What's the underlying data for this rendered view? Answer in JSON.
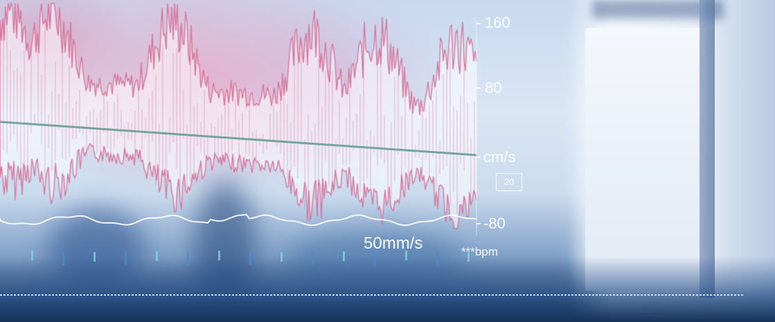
{
  "scale": {
    "top": "160",
    "upper": "80",
    "unit": "cm/s",
    "box": "20",
    "lower": "-80"
  },
  "sweep_speed": "50mm/s",
  "heart_rate": "***bpm",
  "colors": {
    "waveform": "#d3658e",
    "baseline": "#5f9a8e",
    "ecg": "#ffffff",
    "text": "#ffffff"
  }
}
